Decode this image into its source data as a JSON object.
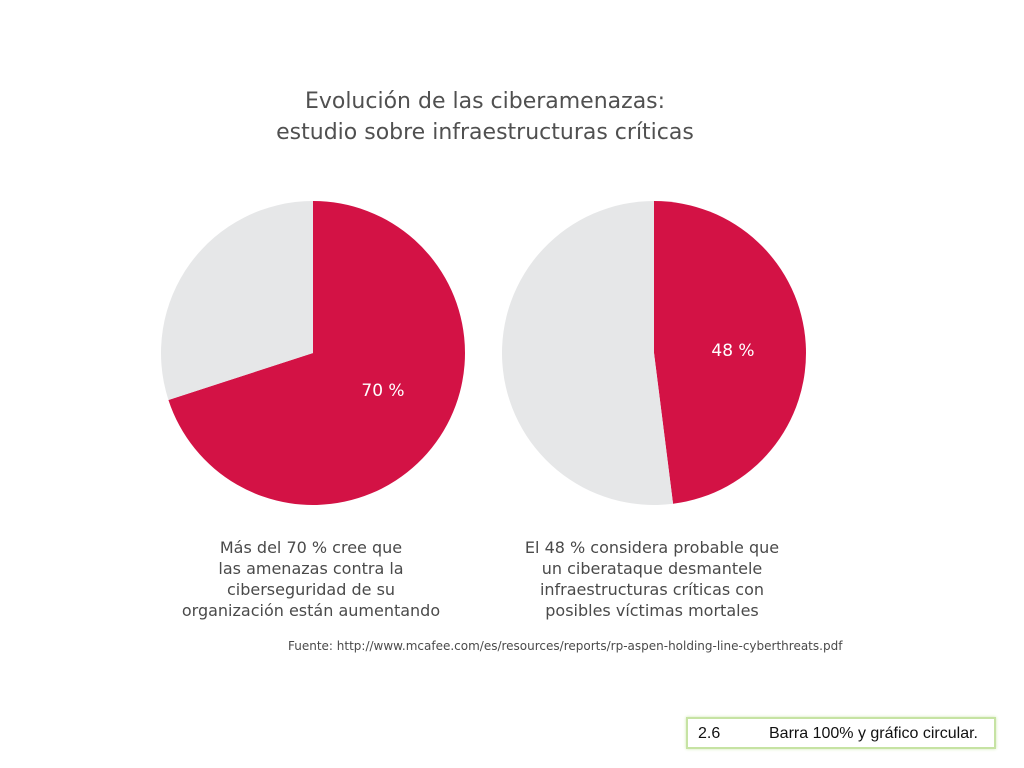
{
  "title": {
    "line1": "Evolución de las ciberamenazas:",
    "line2": "estudio sobre infraestructuras críticas"
  },
  "chart_data": [
    {
      "type": "pie",
      "slices": [
        {
          "label": "70 %",
          "value": 70,
          "color": "#d31245"
        },
        {
          "label": "",
          "value": 30,
          "color": "#e6e7e8"
        }
      ],
      "caption": [
        "Más del 70 % cree que",
        "las amenazas contra la",
        "ciberseguridad de su",
        "organización están aumentando"
      ]
    },
    {
      "type": "pie",
      "slices": [
        {
          "label": "48 %",
          "value": 48,
          "color": "#d31245"
        },
        {
          "label": "",
          "value": 52,
          "color": "#e6e7e8"
        }
      ],
      "caption": [
        "El 48 % considera probable que",
        "un ciberataque desmantele",
        "infraestructuras críticas con",
        "posibles víctimas mortales"
      ]
    }
  ],
  "source": "Fuente: http://www.mcafee.com/es/resources/reports/rp-aspen-holding-line-cyberthreats.pdf",
  "figure_label": {
    "number": "2.6",
    "text": "Barra 100% y gráfico circular."
  }
}
